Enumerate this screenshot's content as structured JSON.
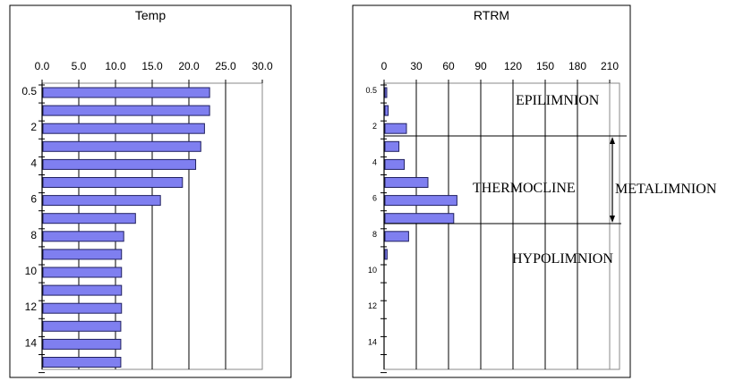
{
  "chart_data": [
    {
      "type": "bar",
      "orientation": "horizontal",
      "title": "Temp",
      "xlim": [
        0,
        30
      ],
      "x_ticks": [
        "0.0",
        "5.0",
        "10.0",
        "15.0",
        "20.0",
        "25.0",
        "30.0"
      ],
      "y_tick_labels": [
        "0.5",
        "2",
        "4",
        "6",
        "8",
        "10",
        "12",
        "14"
      ],
      "grid": true,
      "colors": {
        "bar": "#7f7ff0",
        "bar_edge": "#202060"
      },
      "bars": [
        {
          "depth": "0.5",
          "value": 22.7
        },
        {
          "depth": "1",
          "value": 22.7
        },
        {
          "depth": "2",
          "value": 22.0
        },
        {
          "depth": "3",
          "value": 21.5
        },
        {
          "depth": "4",
          "value": 20.8
        },
        {
          "depth": "5",
          "value": 19.0
        },
        {
          "depth": "6",
          "value": 16.0
        },
        {
          "depth": "7",
          "value": 12.6
        },
        {
          "depth": "8",
          "value": 11.0
        },
        {
          "depth": "9",
          "value": 10.7
        },
        {
          "depth": "10",
          "value": 10.7
        },
        {
          "depth": "11",
          "value": 10.7
        },
        {
          "depth": "12",
          "value": 10.7
        },
        {
          "depth": "13",
          "value": 10.6
        },
        {
          "depth": "14",
          "value": 10.6
        },
        {
          "depth": "15",
          "value": 10.6
        }
      ]
    },
    {
      "type": "bar",
      "orientation": "horizontal",
      "title": "RTRM",
      "xlim": [
        0,
        210
      ],
      "x_ticks": [
        "0",
        "30",
        "60",
        "90",
        "120",
        "150",
        "180",
        "210"
      ],
      "y_tick_labels": [
        "0.5",
        "2",
        "4",
        "6",
        "8",
        "10",
        "12",
        "14"
      ],
      "grid": true,
      "colors": {
        "bar": "#7f7ff0",
        "bar_edge": "#202060"
      },
      "bars": [
        {
          "depth": "0.5",
          "value": 1
        },
        {
          "depth": "1",
          "value": 3
        },
        {
          "depth": "2",
          "value": 20
        },
        {
          "depth": "3",
          "value": 13
        },
        {
          "depth": "4",
          "value": 18
        },
        {
          "depth": "5",
          "value": 40
        },
        {
          "depth": "6",
          "value": 67
        },
        {
          "depth": "7",
          "value": 64
        },
        {
          "depth": "8",
          "value": 22
        },
        {
          "depth": "9",
          "value": 2
        }
      ],
      "zones": {
        "epilimnion": "EPILIMNION",
        "thermocline": "THERMOCLINE",
        "metalimnion": "METALIMNION",
        "hypolimnion": "HYPOLIMNION"
      }
    }
  ]
}
